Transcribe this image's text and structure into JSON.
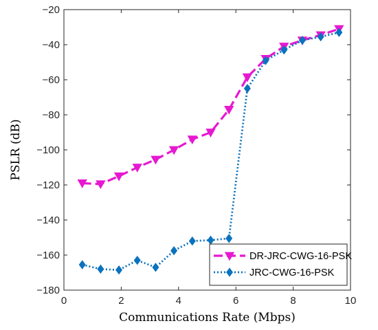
{
  "chart_data": {
    "type": "line",
    "xlabel": "Communications Rate (Mbps)",
    "ylabel": "PSLR (dB)",
    "xlim": [
      0,
      10
    ],
    "ylim": [
      -180,
      -20
    ],
    "xticks": [
      0,
      2,
      4,
      6,
      8,
      10
    ],
    "yticks": [
      -180,
      -160,
      -140,
      -120,
      -100,
      -80,
      -60,
      -40,
      -20
    ],
    "grid": false,
    "legend_position": "bottom-right",
    "series": [
      {
        "name": "DR-JRC-CWG-16-PSK",
        "color": "#e619d1",
        "line_style": "dashed",
        "marker": "triangle-down",
        "x": [
          0.64,
          1.28,
          1.92,
          2.56,
          3.2,
          3.84,
          4.48,
          5.12,
          5.76,
          6.4,
          7.04,
          7.68,
          8.32,
          8.96,
          9.6
        ],
        "y": [
          -119,
          -119.5,
          -115,
          -110,
          -105.5,
          -100,
          -94,
          -90,
          -77,
          -58.5,
          -48,
          -41,
          -37.5,
          -34.5,
          -31
        ]
      },
      {
        "name": "JRC-CWG-16-PSK",
        "color": "#0b72bd",
        "line_style": "dotted",
        "marker": "diamond",
        "x": [
          0.64,
          1.28,
          1.92,
          2.56,
          3.2,
          3.84,
          4.48,
          5.12,
          5.76,
          6.4,
          7.04,
          7.68,
          8.32,
          8.96,
          9.6
        ],
        "y": [
          -165.5,
          -168,
          -168.5,
          -163,
          -167,
          -157.5,
          -152,
          -151.5,
          -150.5,
          -65,
          -49,
          -43,
          -37.5,
          -35.5,
          -33
        ]
      }
    ]
  }
}
